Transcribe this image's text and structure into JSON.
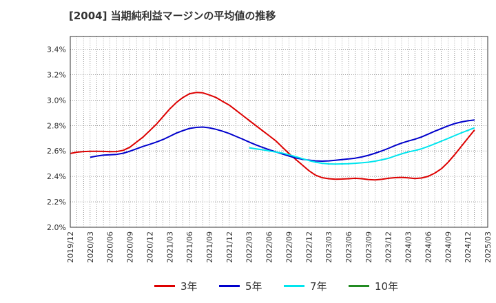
{
  "title": "[2004]  当期純利益マージンの平均値の推移",
  "chart_data": {
    "type": "line",
    "title": "[2004]  当期純利益マージンの平均値の推移",
    "xlabel": "",
    "ylabel": "",
    "ylim": [
      2.0,
      3.5
    ],
    "yticks": [
      2.0,
      2.2,
      2.4,
      2.6,
      2.8,
      3.0,
      3.2,
      3.4
    ],
    "ytick_labels": [
      "2.0%",
      "2.2%",
      "2.4%",
      "2.6%",
      "2.8%",
      "3.0%",
      "3.2%",
      "3.4%"
    ],
    "xticks": [
      "2019/12",
      "2020/03",
      "2020/06",
      "2020/09",
      "2020/12",
      "2021/03",
      "2021/06",
      "2021/09",
      "2021/12",
      "2022/03",
      "2022/06",
      "2022/09",
      "2022/12",
      "2023/03",
      "2023/06",
      "2023/09",
      "2023/12",
      "2024/03",
      "2024/06",
      "2024/09",
      "2024/12",
      "2025/03"
    ],
    "grid": true,
    "legend_position": "bottom",
    "series": [
      {
        "name": "3年",
        "color": "#dd0000",
        "points": [
          [
            "2019/12",
            2.58
          ],
          [
            "2020/01",
            2.59
          ],
          [
            "2020/02",
            2.595
          ],
          [
            "2020/03",
            2.597
          ],
          [
            "2020/04",
            2.597
          ],
          [
            "2020/05",
            2.596
          ],
          [
            "2020/06",
            2.594
          ],
          [
            "2020/07",
            2.595
          ],
          [
            "2020/08",
            2.605
          ],
          [
            "2020/09",
            2.63
          ],
          [
            "2020/10",
            2.67
          ],
          [
            "2020/11",
            2.71
          ],
          [
            "2020/12",
            2.76
          ],
          [
            "2021/01",
            2.81
          ],
          [
            "2021/02",
            2.87
          ],
          [
            "2021/03",
            2.93
          ],
          [
            "2021/04",
            2.98
          ],
          [
            "2021/05",
            3.02
          ],
          [
            "2021/06",
            3.05
          ],
          [
            "2021/07",
            3.06
          ],
          [
            "2021/08",
            3.057
          ],
          [
            "2021/09",
            3.04
          ],
          [
            "2021/10",
            3.02
          ],
          [
            "2021/11",
            2.99
          ],
          [
            "2021/12",
            2.96
          ],
          [
            "2022/01",
            2.92
          ],
          [
            "2022/02",
            2.88
          ],
          [
            "2022/03",
            2.84
          ],
          [
            "2022/04",
            2.8
          ],
          [
            "2022/05",
            2.76
          ],
          [
            "2022/06",
            2.72
          ],
          [
            "2022/07",
            2.68
          ],
          [
            "2022/08",
            2.63
          ],
          [
            "2022/09",
            2.58
          ],
          [
            "2022/10",
            2.535
          ],
          [
            "2022/11",
            2.49
          ],
          [
            "2022/12",
            2.445
          ],
          [
            "2023/01",
            2.41
          ],
          [
            "2023/02",
            2.39
          ],
          [
            "2023/03",
            2.382
          ],
          [
            "2023/04",
            2.378
          ],
          [
            "2023/05",
            2.379
          ],
          [
            "2023/06",
            2.382
          ],
          [
            "2023/07",
            2.385
          ],
          [
            "2023/08",
            2.382
          ],
          [
            "2023/09",
            2.375
          ],
          [
            "2023/10",
            2.372
          ],
          [
            "2023/11",
            2.377
          ],
          [
            "2023/12",
            2.385
          ],
          [
            "2024/01",
            2.39
          ],
          [
            "2024/02",
            2.392
          ],
          [
            "2024/03",
            2.388
          ],
          [
            "2024/04",
            2.383
          ],
          [
            "2024/05",
            2.387
          ],
          [
            "2024/06",
            2.4
          ],
          [
            "2024/07",
            2.425
          ],
          [
            "2024/08",
            2.46
          ],
          [
            "2024/09",
            2.51
          ],
          [
            "2024/10",
            2.57
          ],
          [
            "2024/11",
            2.635
          ],
          [
            "2024/12",
            2.7
          ],
          [
            "2025/01",
            2.765
          ]
        ]
      },
      {
        "name": "5年",
        "color": "#0000cc",
        "points": [
          [
            "2020/03",
            2.55
          ],
          [
            "2020/04",
            2.56
          ],
          [
            "2020/05",
            2.567
          ],
          [
            "2020/06",
            2.57
          ],
          [
            "2020/07",
            2.573
          ],
          [
            "2020/08",
            2.582
          ],
          [
            "2020/09",
            2.598
          ],
          [
            "2020/10",
            2.617
          ],
          [
            "2020/11",
            2.636
          ],
          [
            "2020/12",
            2.652
          ],
          [
            "2021/01",
            2.67
          ],
          [
            "2021/02",
            2.69
          ],
          [
            "2021/03",
            2.715
          ],
          [
            "2021/04",
            2.74
          ],
          [
            "2021/05",
            2.76
          ],
          [
            "2021/06",
            2.777
          ],
          [
            "2021/07",
            2.785
          ],
          [
            "2021/08",
            2.788
          ],
          [
            "2021/09",
            2.782
          ],
          [
            "2021/10",
            2.77
          ],
          [
            "2021/11",
            2.755
          ],
          [
            "2021/12",
            2.737
          ],
          [
            "2022/01",
            2.715
          ],
          [
            "2022/02",
            2.693
          ],
          [
            "2022/03",
            2.67
          ],
          [
            "2022/04",
            2.648
          ],
          [
            "2022/05",
            2.628
          ],
          [
            "2022/06",
            2.61
          ],
          [
            "2022/07",
            2.593
          ],
          [
            "2022/08",
            2.576
          ],
          [
            "2022/09",
            2.56
          ],
          [
            "2022/10",
            2.545
          ],
          [
            "2022/11",
            2.535
          ],
          [
            "2022/12",
            2.528
          ],
          [
            "2023/01",
            2.522
          ],
          [
            "2023/02",
            2.52
          ],
          [
            "2023/03",
            2.522
          ],
          [
            "2023/04",
            2.527
          ],
          [
            "2023/05",
            2.532
          ],
          [
            "2023/06",
            2.537
          ],
          [
            "2023/07",
            2.543
          ],
          [
            "2023/08",
            2.553
          ],
          [
            "2023/09",
            2.566
          ],
          [
            "2023/10",
            2.582
          ],
          [
            "2023/11",
            2.6
          ],
          [
            "2023/12",
            2.62
          ],
          [
            "2024/01",
            2.642
          ],
          [
            "2024/02",
            2.662
          ],
          [
            "2024/03",
            2.678
          ],
          [
            "2024/04",
            2.692
          ],
          [
            "2024/05",
            2.71
          ],
          [
            "2024/06",
            2.732
          ],
          [
            "2024/07",
            2.755
          ],
          [
            "2024/08",
            2.776
          ],
          [
            "2024/09",
            2.797
          ],
          [
            "2024/10",
            2.815
          ],
          [
            "2024/11",
            2.828
          ],
          [
            "2024/12",
            2.837
          ],
          [
            "2025/01",
            2.843
          ]
        ]
      },
      {
        "name": "7年",
        "color": "#00e5ee",
        "points": [
          [
            "2022/03",
            2.625
          ],
          [
            "2022/04",
            2.617
          ],
          [
            "2022/05",
            2.609
          ],
          [
            "2022/06",
            2.6
          ],
          [
            "2022/07",
            2.592
          ],
          [
            "2022/08",
            2.583
          ],
          [
            "2022/09",
            2.57
          ],
          [
            "2022/10",
            2.555
          ],
          [
            "2022/11",
            2.54
          ],
          [
            "2022/12",
            2.525
          ],
          [
            "2023/01",
            2.512
          ],
          [
            "2023/02",
            2.503
          ],
          [
            "2023/03",
            2.498
          ],
          [
            "2023/04",
            2.497
          ],
          [
            "2023/05",
            2.498
          ],
          [
            "2023/06",
            2.5
          ],
          [
            "2023/07",
            2.503
          ],
          [
            "2023/08",
            2.507
          ],
          [
            "2023/09",
            2.512
          ],
          [
            "2023/10",
            2.52
          ],
          [
            "2023/11",
            2.53
          ],
          [
            "2023/12",
            2.542
          ],
          [
            "2024/01",
            2.56
          ],
          [
            "2024/02",
            2.577
          ],
          [
            "2024/03",
            2.592
          ],
          [
            "2024/04",
            2.603
          ],
          [
            "2024/05",
            2.617
          ],
          [
            "2024/06",
            2.635
          ],
          [
            "2024/07",
            2.656
          ],
          [
            "2024/08",
            2.677
          ],
          [
            "2024/09",
            2.698
          ],
          [
            "2024/10",
            2.72
          ],
          [
            "2024/11",
            2.742
          ],
          [
            "2024/12",
            2.762
          ],
          [
            "2025/01",
            2.782
          ]
        ]
      },
      {
        "name": "10年",
        "color": "#228b22",
        "points": []
      }
    ]
  }
}
